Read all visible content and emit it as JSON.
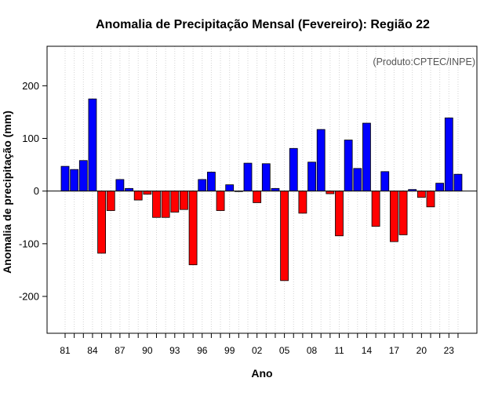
{
  "chart_data": {
    "type": "bar",
    "title": "Anomalia de Precipitação Mensal (Fevereiro): Região 22",
    "credit": "(Produto:CPTEC/INPE)",
    "xlabel": "Ano",
    "ylabel": "Anomalia de precipitação (mm)",
    "ylim": [
      -270,
      275
    ],
    "yticks": [
      -200,
      -100,
      0,
      100,
      200
    ],
    "grid": "vertical-dotted",
    "positive_color": "#0000ff",
    "negative_color": "#ff0000",
    "categories": [
      "81",
      "82",
      "83",
      "84",
      "85",
      "86",
      "87",
      "88",
      "89",
      "90",
      "91",
      "92",
      "93",
      "94",
      "95",
      "96",
      "97",
      "98",
      "99",
      "00",
      "01",
      "02",
      "03",
      "04",
      "05",
      "06",
      "07",
      "08",
      "09",
      "10",
      "11",
      "12",
      "13",
      "14",
      "15",
      "16",
      "17",
      "18",
      "19",
      "20",
      "21",
      "22",
      "23",
      "24"
    ],
    "tick_labels": [
      "81",
      "84",
      "87",
      "90",
      "93",
      "96",
      "99",
      "02",
      "05",
      "08",
      "11",
      "14",
      "17",
      "20",
      "23"
    ],
    "values": [
      47,
      41,
      58,
      175,
      -118,
      -37,
      22,
      5,
      -17,
      -6,
      -50,
      -50,
      -40,
      -35,
      -140,
      22,
      36,
      -37,
      12,
      0,
      53,
      -22,
      52,
      5,
      -170,
      81,
      -42,
      55,
      117,
      -5,
      -85,
      97,
      43,
      129,
      -67,
      37,
      -96,
      -83,
      3,
      -12,
      -30,
      15,
      139,
      32
    ]
  }
}
